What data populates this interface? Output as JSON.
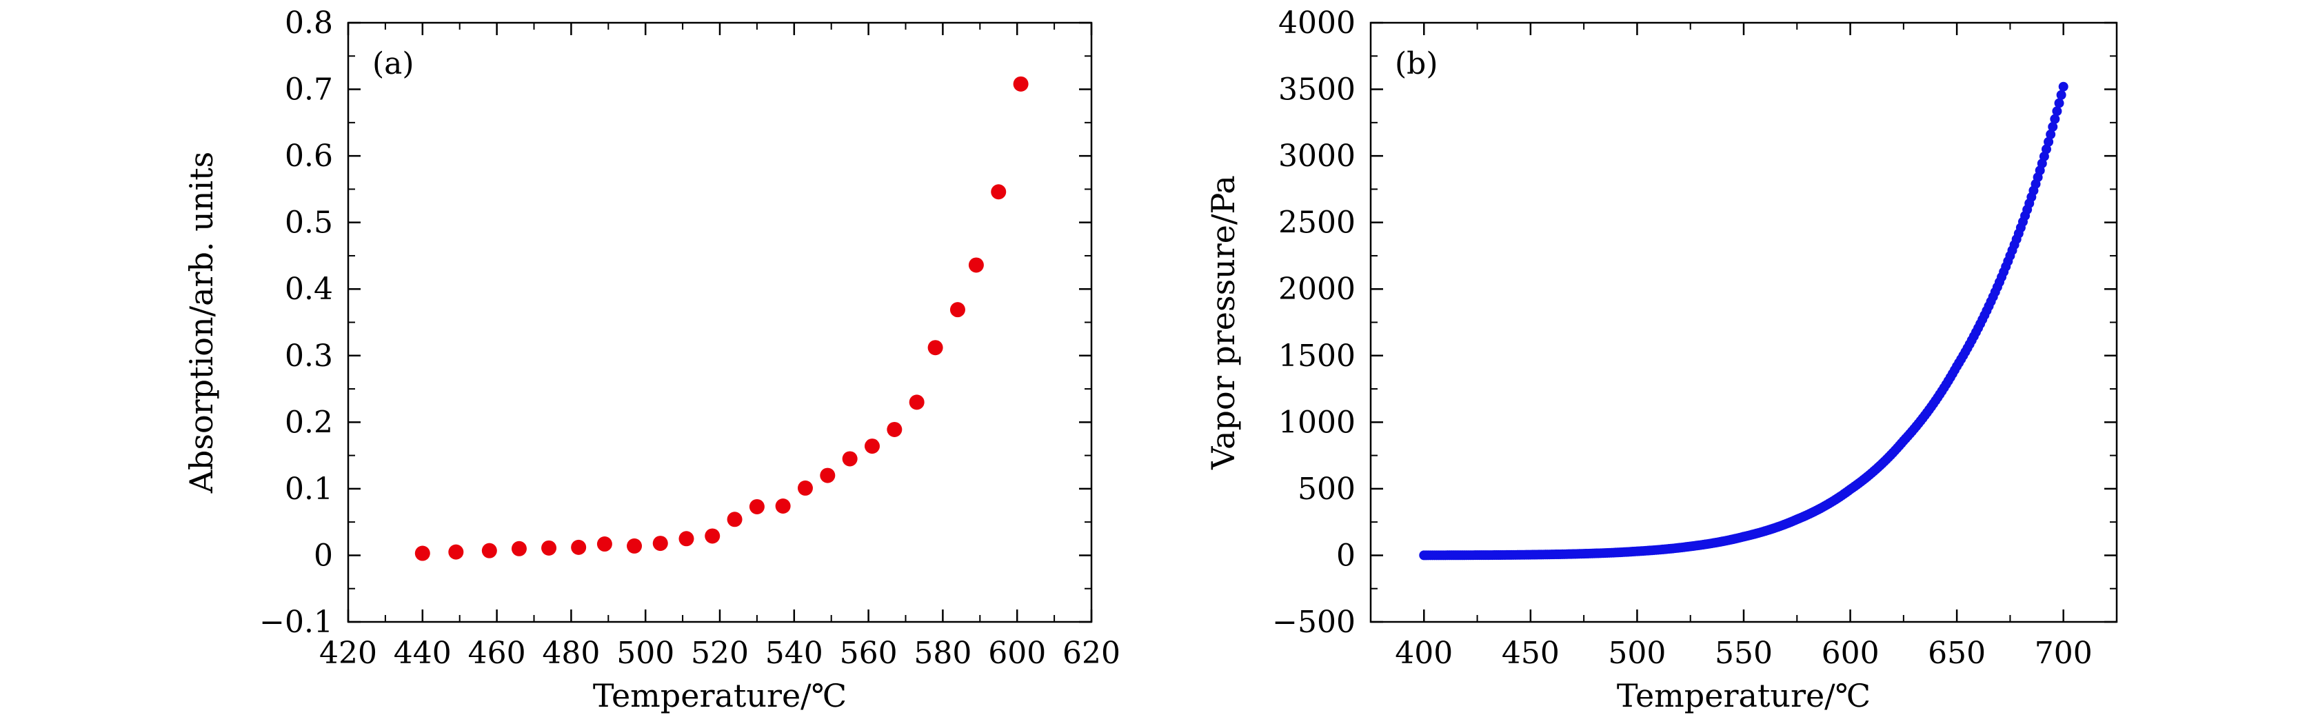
{
  "chart_data": [
    {
      "type": "scatter",
      "panel_label": "(a)",
      "xlabel": "Temperature/℃",
      "ylabel": "Absorption/arb. units",
      "xlim": [
        420,
        620
      ],
      "ylim": [
        -0.1,
        0.8
      ],
      "xticks": [
        420,
        440,
        460,
        480,
        500,
        520,
        540,
        560,
        580,
        600,
        620
      ],
      "yticks": [
        -0.1,
        0,
        0.1,
        0.2,
        0.3,
        0.4,
        0.5,
        0.6,
        0.7,
        0.8
      ],
      "ytick_labels": [
        "−0.1",
        "0",
        "0.1",
        "0.2",
        "0.3",
        "0.4",
        "0.5",
        "0.6",
        "0.7",
        "0.8"
      ],
      "marker_color": "#e8000b",
      "x": [
        440,
        449,
        458,
        466,
        474,
        482,
        489,
        497,
        504,
        511,
        518,
        524,
        530,
        537,
        543,
        549,
        555,
        561,
        567,
        573,
        578,
        584,
        589,
        595,
        601
      ],
      "y": [
        0.003,
        0.005,
        0.007,
        0.01,
        0.011,
        0.012,
        0.017,
        0.014,
        0.018,
        0.025,
        0.029,
        0.054,
        0.073,
        0.074,
        0.101,
        0.12,
        0.145,
        0.164,
        0.189,
        0.23,
        0.312,
        0.369,
        0.436,
        0.546,
        0.708
      ]
    },
    {
      "type": "line",
      "panel_label": "(b)",
      "xlabel": "Temperature/℃",
      "ylabel": "Vapor pressure/Pa",
      "xlim": [
        375,
        725
      ],
      "ylim": [
        -500,
        4000
      ],
      "xticks": [
        400,
        450,
        500,
        550,
        600,
        650,
        700
      ],
      "yticks": [
        -500,
        0,
        500,
        1000,
        1500,
        2000,
        2500,
        3000,
        3500,
        4000
      ],
      "ytick_labels": [
        "−500",
        "0",
        "500",
        "1000",
        "1500",
        "2000",
        "2500",
        "3000",
        "3500",
        "4000"
      ],
      "marker_color": "#1010e6",
      "x": [
        400,
        425,
        450,
        475,
        500,
        525,
        550,
        575,
        600,
        625,
        650,
        675,
        700
      ],
      "y": [
        0.4,
        1.4,
        4.5,
        12,
        30,
        67,
        140,
        270,
        495,
        860,
        1420,
        2250,
        3520
      ]
    }
  ]
}
